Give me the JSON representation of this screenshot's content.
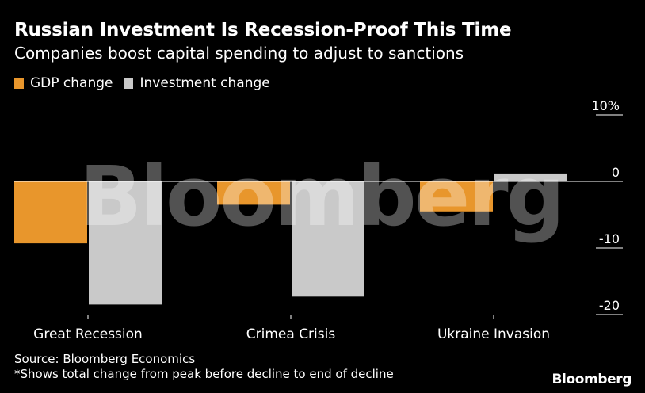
{
  "header": {
    "title": "Russian Investment Is Recession-Proof This Time",
    "subtitle": "Companies boost capital spending to adjust to sanctions"
  },
  "legend": [
    {
      "label": "GDP change",
      "color": "#e8962c"
    },
    {
      "label": "Investment change",
      "color": "#c9c9c9"
    }
  ],
  "footer": {
    "source": "Source: Bloomberg Economics",
    "note": "*Shows total change from peak before decline to end of decline",
    "brand": "Bloomberg"
  },
  "watermark": "Bloomberg",
  "chart_data": {
    "type": "bar",
    "categories": [
      "Great Recession",
      "Crimea Crisis",
      "Ukraine Invasion"
    ],
    "series": [
      {
        "name": "GDP change",
        "color": "#e8962c",
        "values": [
          -9.3,
          -3.5,
          -4.5
        ]
      },
      {
        "name": "Investment change",
        "color": "#c9c9c9",
        "values": [
          -18.5,
          -17.3,
          1.2
        ]
      }
    ],
    "yticks": [
      "10%",
      "0",
      "-10",
      "-20"
    ],
    "ytick_values": [
      10,
      0,
      -10,
      -20
    ],
    "ylim": [
      -20,
      10
    ],
    "y_axis_position": "right",
    "grid": false,
    "legend_position": "top-left"
  }
}
